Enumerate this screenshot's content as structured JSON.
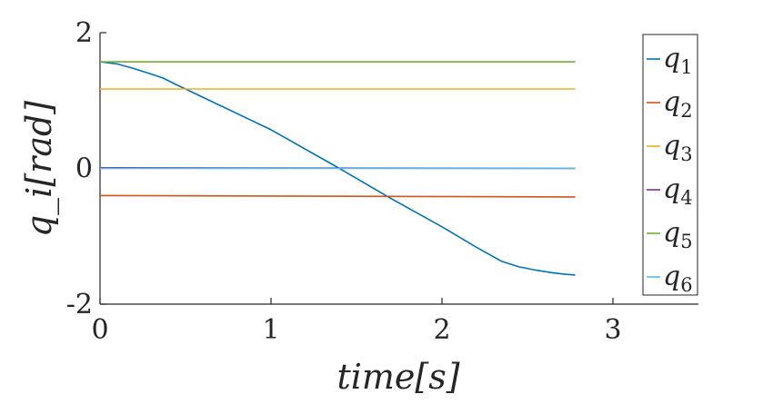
{
  "chart_data": {
    "type": "line",
    "xlabel": "time[s]",
    "ylabel": "q_i[rad]",
    "xlim": [
      0,
      3.5
    ],
    "ylim": [
      -2,
      2
    ],
    "xticks": [
      0,
      1,
      2,
      3
    ],
    "yticks": [
      -2,
      0,
      2
    ],
    "xtick_labels": [
      "0",
      "1",
      "2",
      "3"
    ],
    "ytick_labels": [
      "-2",
      "0",
      "2"
    ],
    "grid": false,
    "legend_position": "right",
    "series": [
      {
        "name": "q1",
        "symbol": "q",
        "sub": "1",
        "color": "#0072BD",
        "x": [
          0,
          0.1,
          0.2,
          0.3,
          0.37,
          0.45,
          0.55,
          0.7,
          1.0,
          1.4,
          1.7,
          2.0,
          2.2,
          2.35,
          2.45,
          2.55,
          2.65,
          2.72,
          2.78
        ],
        "y": [
          1.57,
          1.54,
          1.47,
          1.39,
          1.33,
          1.23,
          1.11,
          0.93,
          0.57,
          0.0,
          -0.44,
          -0.86,
          -1.16,
          -1.37,
          -1.45,
          -1.5,
          -1.54,
          -1.56,
          -1.57
        ]
      },
      {
        "name": "q2",
        "symbol": "q",
        "sub": "2",
        "color": "#D95319",
        "x": [
          0,
          2.78
        ],
        "y": [
          -0.4,
          -0.42
        ]
      },
      {
        "name": "q3",
        "symbol": "q",
        "sub": "3",
        "color": "#EDB120",
        "x": [
          0,
          2.78
        ],
        "y": [
          1.17,
          1.17
        ]
      },
      {
        "name": "q4",
        "symbol": "q",
        "sub": "4",
        "color": "#7E2F8E",
        "x": [
          0,
          2.78
        ],
        "y": [
          0.01,
          0.0
        ]
      },
      {
        "name": "q5",
        "symbol": "q",
        "sub": "5",
        "color": "#77AC30",
        "x": [
          0,
          2.78
        ],
        "y": [
          1.57,
          1.57
        ]
      },
      {
        "name": "q6",
        "symbol": "q",
        "sub": "6",
        "color": "#4DBEEE",
        "x": [
          0,
          2.78
        ],
        "y": [
          0.0,
          0.0
        ]
      }
    ]
  }
}
